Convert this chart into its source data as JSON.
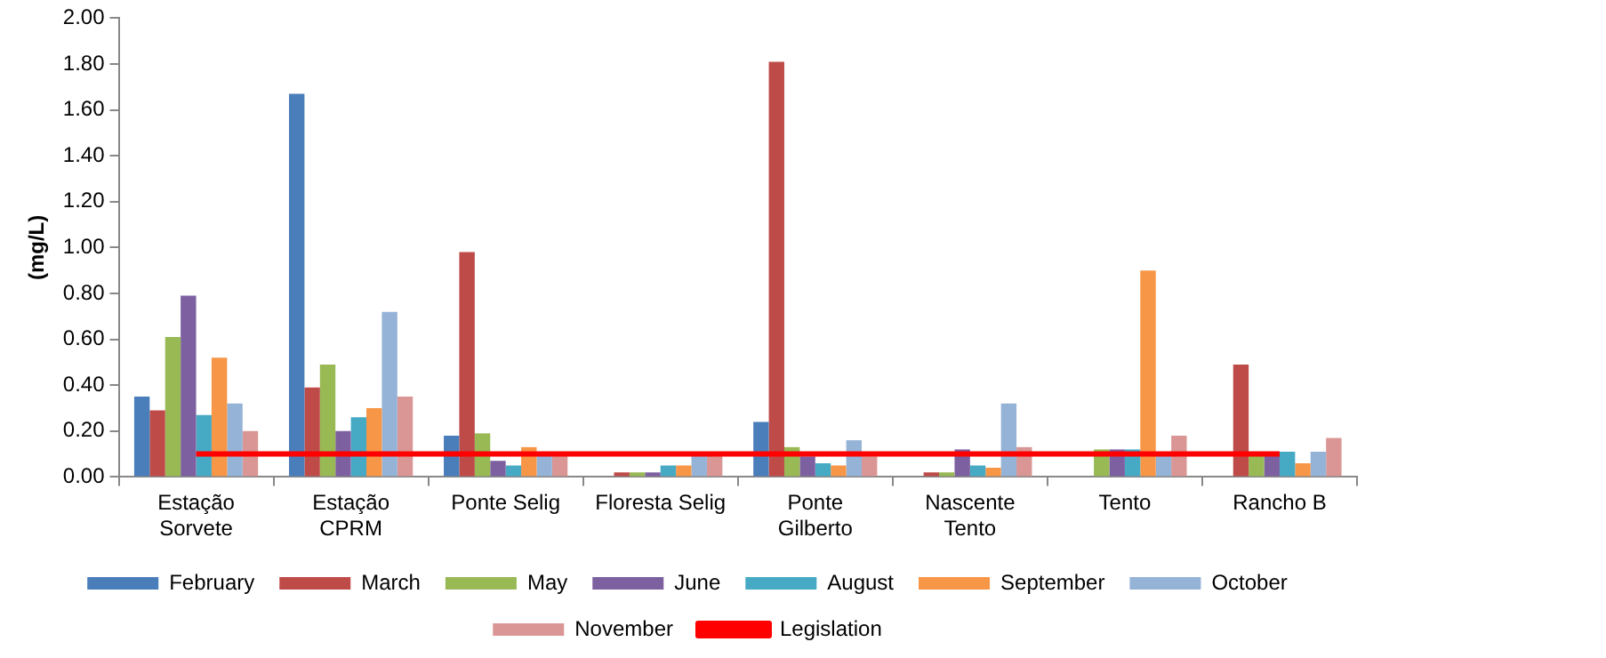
{
  "chart_data": {
    "type": "bar",
    "ylabel": "(mg/L)",
    "categories": [
      "Estação\nSorvete",
      "Estação\nCPRM",
      "Ponte Selig",
      "Floresta Selig",
      "Ponte\nGilberto",
      "Nascente\nTento",
      "Tento",
      "Rancho B"
    ],
    "series": [
      {
        "name": "February",
        "color": "#4a7ebb",
        "values": [
          0.35,
          1.67,
          0.18,
          0,
          0.24,
          0,
          0,
          0
        ]
      },
      {
        "name": "March",
        "color": "#be4b48",
        "values": [
          0.29,
          0.39,
          0.98,
          0.02,
          1.81,
          0.02,
          null,
          0.49
        ]
      },
      {
        "name": "May",
        "color": "#98b954",
        "values": [
          0.61,
          0.49,
          0.19,
          0.02,
          0.13,
          0.02,
          0.12,
          0.1
        ]
      },
      {
        "name": "June",
        "color": "#7d60a0",
        "values": [
          0.79,
          0.2,
          0.07,
          0.02,
          0.09,
          0.12,
          0.12,
          0.1
        ]
      },
      {
        "name": "August",
        "color": "#46aac5",
        "values": [
          0.27,
          0.26,
          0.05,
          0.05,
          0.06,
          0.05,
          0.12,
          0.11
        ]
      },
      {
        "name": "September",
        "color": "#f79646",
        "values": [
          0.52,
          0.3,
          0.13,
          0.05,
          0.05,
          0.04,
          0.9,
          0.06
        ]
      },
      {
        "name": "October",
        "color": "#95b3d7",
        "values": [
          0.32,
          0.72,
          0.1,
          0.1,
          0.16,
          0.32,
          0.1,
          0.11
        ]
      },
      {
        "name": "November",
        "color": "#d99694",
        "values": [
          0.2,
          0.35,
          0.1,
          0.1,
          0.09,
          0.13,
          0.18,
          0.17
        ]
      },
      {
        "name": "Legislation",
        "type": "line",
        "color": "#ff0000",
        "values": [
          0.1,
          0.1,
          0.1,
          0.1,
          0.1,
          0.1,
          0.1,
          0.1
        ]
      }
    ],
    "ylim": [
      0,
      2
    ],
    "yticks": [
      {
        "value": 0,
        "label": "0.00"
      },
      {
        "value": 0.2,
        "label": "0.20"
      },
      {
        "value": 0.4,
        "label": "0.40"
      },
      {
        "value": 0.6,
        "label": "0.60"
      },
      {
        "value": 0.8,
        "label": "0.80"
      },
      {
        "value": 1,
        "label": "1.00"
      },
      {
        "value": 1.2,
        "label": "1.20"
      },
      {
        "value": 1.4,
        "label": "1.40"
      },
      {
        "value": 1.6,
        "label": "1.60"
      },
      {
        "value": 1.8,
        "label": "1.80"
      },
      {
        "value": 2,
        "label": "2.00"
      }
    ],
    "grid": false,
    "legend": "bottom"
  }
}
